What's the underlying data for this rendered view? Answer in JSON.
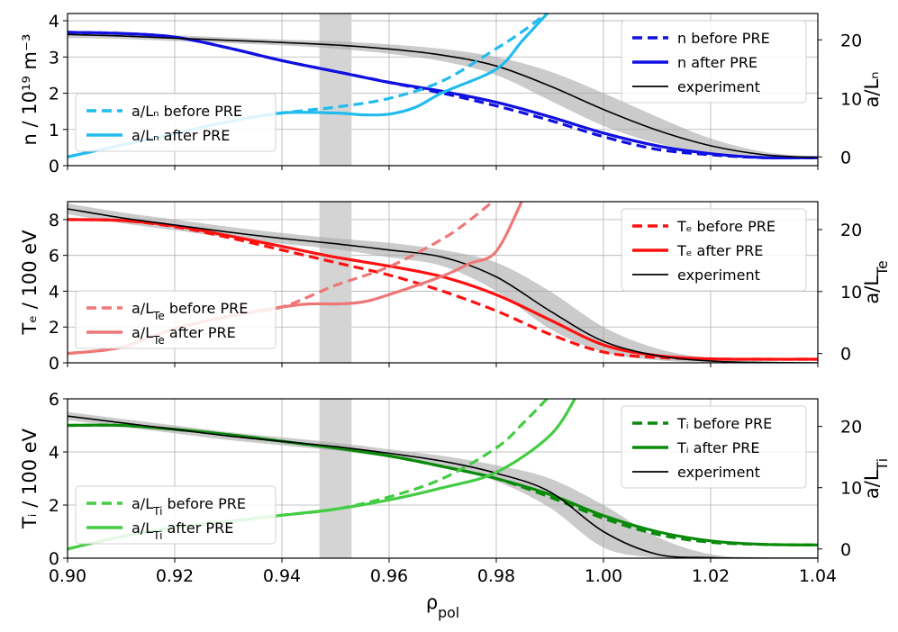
{
  "chart_data": [
    {
      "type": "line",
      "panel": "density",
      "xlabel": "",
      "ylabel_left": "n / 10¹⁹ m⁻³",
      "ylabel_right": "a/Lₙ",
      "xlim": [
        0.9,
        1.04
      ],
      "ylim_left": [
        0,
        4.2
      ],
      "ylim_right": [
        -1.5,
        24.5
      ],
      "yticks_left": [
        0,
        1,
        2,
        3,
        4
      ],
      "yticks_right": [
        0,
        10,
        20
      ],
      "yticklabels_left": [
        "0",
        "1",
        "2",
        "3",
        "4"
      ],
      "yticklabels_right": [
        "0",
        "10",
        "20"
      ],
      "shaded_x_range": [
        0.947,
        0.953
      ],
      "legend_upper": {
        "position": "upper-right",
        "entries": [
          "n before PRE",
          "n after PRE",
          "experiment"
        ]
      },
      "legend_lower": {
        "position": "lower-left",
        "entries": [
          "a/Lₙ before PRE",
          "a/Lₙ after PRE"
        ]
      },
      "series": [
        {
          "name": "n before PRE",
          "axis": "left",
          "style": "dashed",
          "color": "#1010e0",
          "x": [
            0.9,
            0.91,
            0.92,
            0.93,
            0.94,
            0.95,
            0.96,
            0.97,
            0.98,
            0.99,
            1.0,
            1.01,
            1.02,
            1.03,
            1.04
          ],
          "y": [
            3.68,
            3.65,
            3.55,
            3.25,
            2.9,
            2.6,
            2.3,
            2.0,
            1.65,
            1.25,
            0.8,
            0.45,
            0.3,
            0.22,
            0.22
          ]
        },
        {
          "name": "n after PRE",
          "axis": "left",
          "style": "solid",
          "color": "#1010e0",
          "x": [
            0.9,
            0.91,
            0.92,
            0.93,
            0.94,
            0.95,
            0.96,
            0.97,
            0.98,
            0.99,
            1.0,
            1.01,
            1.02,
            1.03,
            1.04
          ],
          "y": [
            3.68,
            3.65,
            3.55,
            3.25,
            2.9,
            2.6,
            2.3,
            2.05,
            1.75,
            1.35,
            0.9,
            0.55,
            0.33,
            0.22,
            0.22
          ]
        },
        {
          "name": "experiment",
          "axis": "left",
          "style": "solid",
          "color": "#000000",
          "x": [
            0.9,
            0.91,
            0.92,
            0.93,
            0.94,
            0.95,
            0.96,
            0.97,
            0.98,
            0.99,
            1.0,
            1.01,
            1.02,
            1.03,
            1.04
          ],
          "y": [
            3.62,
            3.58,
            3.52,
            3.46,
            3.4,
            3.33,
            3.22,
            3.05,
            2.75,
            2.2,
            1.55,
            0.98,
            0.55,
            0.3,
            0.22
          ],
          "band_upper": [
            3.72,
            3.66,
            3.6,
            3.54,
            3.48,
            3.43,
            3.35,
            3.22,
            3.0,
            2.6,
            2.0,
            1.35,
            0.75,
            0.38,
            0.25
          ],
          "band_lower": [
            3.52,
            3.5,
            3.44,
            3.38,
            3.32,
            3.23,
            3.09,
            2.88,
            2.5,
            1.8,
            1.1,
            0.62,
            0.35,
            0.22,
            0.19
          ]
        },
        {
          "name": "a/Lₙ before PRE",
          "axis": "right",
          "style": "dashed",
          "color": "#22bbee",
          "x": [
            0.9,
            0.91,
            0.92,
            0.93,
            0.94,
            0.95,
            0.96,
            0.97,
            0.98,
            0.985,
            0.99
          ],
          "y": [
            0,
            2,
            4,
            6,
            7.5,
            8.5,
            10,
            13,
            18.5,
            21.5,
            25
          ]
        },
        {
          "name": "a/Lₙ after PRE",
          "axis": "right",
          "style": "solid",
          "color": "#22bbee",
          "x": [
            0.9,
            0.91,
            0.92,
            0.93,
            0.94,
            0.95,
            0.955,
            0.96,
            0.965,
            0.97,
            0.98,
            0.985,
            0.99
          ],
          "y": [
            0,
            2,
            4,
            6,
            7.5,
            7.5,
            7.2,
            7.3,
            8.5,
            11,
            15,
            20,
            25
          ]
        }
      ]
    },
    {
      "type": "line",
      "panel": "electron temperature",
      "xlabel": "",
      "ylabel_left": "Tₑ / 100 eV",
      "ylabel_right": "a/L_Te",
      "xlim": [
        0.9,
        1.04
      ],
      "ylim_left": [
        0,
        9
      ],
      "ylim_right": [
        -1.5,
        24.5
      ],
      "yticks_left": [
        0,
        2,
        4,
        6,
        8
      ],
      "yticks_right": [
        0,
        10,
        20
      ],
      "yticklabels_left": [
        "0",
        "2",
        "4",
        "6",
        "8"
      ],
      "yticklabels_right": [
        "0",
        "10",
        "20"
      ],
      "shaded_x_range": [
        0.947,
        0.953
      ],
      "legend_upper": {
        "position": "upper-right",
        "entries": [
          "Tₑ before PRE",
          "Tₑ after PRE",
          "experiment"
        ]
      },
      "legend_lower": {
        "position": "lower-left",
        "entries": [
          "a/L_Te before PRE",
          "a/L_Te after PRE"
        ]
      },
      "series": [
        {
          "name": "Tₑ before PRE",
          "axis": "left",
          "style": "dashed",
          "color": "#ff1010",
          "x": [
            0.9,
            0.91,
            0.92,
            0.93,
            0.94,
            0.95,
            0.96,
            0.97,
            0.98,
            0.99,
            1.0,
            1.01,
            1.02,
            1.03,
            1.04
          ],
          "y": [
            8.0,
            7.95,
            7.6,
            7.0,
            6.3,
            5.6,
            4.9,
            4.0,
            2.9,
            1.6,
            0.6,
            0.3,
            0.22,
            0.2,
            0.2
          ]
        },
        {
          "name": "Tₑ after PRE",
          "axis": "left",
          "style": "solid",
          "color": "#ff1010",
          "x": [
            0.9,
            0.91,
            0.92,
            0.93,
            0.94,
            0.95,
            0.96,
            0.97,
            0.98,
            0.99,
            1.0,
            1.01,
            1.02,
            1.03,
            1.04
          ],
          "y": [
            8.0,
            7.95,
            7.65,
            7.1,
            6.5,
            5.9,
            5.4,
            4.8,
            3.8,
            2.4,
            1.0,
            0.4,
            0.22,
            0.2,
            0.2
          ]
        },
        {
          "name": "experiment",
          "axis": "left",
          "style": "solid",
          "color": "#000000",
          "x": [
            0.9,
            0.91,
            0.92,
            0.93,
            0.94,
            0.95,
            0.96,
            0.97,
            0.98,
            0.99,
            1.0,
            1.01,
            1.02,
            1.03,
            1.04
          ],
          "y": [
            8.6,
            8.1,
            7.7,
            7.3,
            6.95,
            6.65,
            6.3,
            5.9,
            4.8,
            2.9,
            1.2,
            0.4,
            0.1,
            0.02,
            0.0
          ],
          "band_upper": [
            8.9,
            8.4,
            8.0,
            7.6,
            7.25,
            6.95,
            6.7,
            6.3,
            5.6,
            4.0,
            2.0,
            0.8,
            0.25,
            0.06,
            0.02
          ],
          "band_lower": [
            8.3,
            7.8,
            7.4,
            7.0,
            6.65,
            6.35,
            5.9,
            5.4,
            4.0,
            1.9,
            0.6,
            0.15,
            0.02,
            0.0,
            0.0
          ]
        },
        {
          "name": "a/L_Te before PRE",
          "axis": "right",
          "style": "dashed",
          "color": "#ee7777",
          "x": [
            0.9,
            0.91,
            0.92,
            0.93,
            0.94,
            0.95,
            0.96,
            0.97,
            0.975,
            0.98
          ],
          "y": [
            0,
            1,
            4,
            6,
            7.5,
            11,
            14,
            18.5,
            21.5,
            25
          ]
        },
        {
          "name": "a/L_Te after PRE",
          "axis": "right",
          "style": "solid",
          "color": "#ee7777",
          "x": [
            0.9,
            0.91,
            0.92,
            0.93,
            0.94,
            0.945,
            0.95,
            0.955,
            0.96,
            0.97,
            0.975,
            0.98,
            0.985
          ],
          "y": [
            0,
            1,
            4,
            6,
            7.5,
            8.0,
            8.0,
            8.3,
            9.5,
            12.5,
            14.5,
            16.5,
            25
          ]
        }
      ]
    },
    {
      "type": "line",
      "panel": "ion temperature",
      "xlabel": "ρ_pol",
      "ylabel_left": "Tᵢ / 100 eV",
      "ylabel_right": "a/L_Ti",
      "xlim": [
        0.9,
        1.04
      ],
      "ylim_left": [
        0,
        6
      ],
      "ylim_right": [
        -1.5,
        24.5
      ],
      "yticks_left": [
        0,
        2,
        4,
        6
      ],
      "yticks_right": [
        0,
        10,
        20
      ],
      "yticklabels_left": [
        "0",
        "2",
        "4",
        "6"
      ],
      "yticklabels_right": [
        "0",
        "10",
        "20"
      ],
      "xticks": [
        0.9,
        0.92,
        0.94,
        0.96,
        0.98,
        1.0,
        1.02,
        1.04
      ],
      "xticklabels": [
        "0.90",
        "0.92",
        "0.94",
        "0.96",
        "0.98",
        "1.00",
        "1.02",
        "1.04"
      ],
      "shaded_x_range": [
        0.947,
        0.953
      ],
      "legend_upper": {
        "position": "upper-right",
        "entries": [
          "Tᵢ before PRE",
          "Tᵢ after PRE",
          "experiment"
        ]
      },
      "legend_lower": {
        "position": "lower-left",
        "entries": [
          "a/L_Ti before PRE",
          "a/L_Ti after PRE"
        ]
      },
      "series": [
        {
          "name": "Tᵢ before PRE",
          "axis": "left",
          "style": "dashed",
          "color": "#0a8a0a",
          "x": [
            0.9,
            0.91,
            0.92,
            0.93,
            0.94,
            0.95,
            0.96,
            0.97,
            0.98,
            0.99,
            1.0,
            1.01,
            1.02,
            1.03,
            1.04
          ],
          "y": [
            5.0,
            5.0,
            4.85,
            4.65,
            4.4,
            4.15,
            3.85,
            3.45,
            3.0,
            2.3,
            1.5,
            0.9,
            0.6,
            0.52,
            0.5
          ]
        },
        {
          "name": "Tᵢ after PRE",
          "axis": "left",
          "style": "solid",
          "color": "#0a8a0a",
          "x": [
            0.9,
            0.91,
            0.92,
            0.93,
            0.94,
            0.95,
            0.96,
            0.97,
            0.98,
            0.99,
            1.0,
            1.01,
            1.02,
            1.03,
            1.04
          ],
          "y": [
            5.0,
            5.0,
            4.85,
            4.65,
            4.4,
            4.15,
            3.85,
            3.45,
            3.0,
            2.4,
            1.6,
            1.0,
            0.65,
            0.52,
            0.5
          ]
        },
        {
          "name": "experiment",
          "axis": "left",
          "style": "solid",
          "color": "#000000",
          "x": [
            0.9,
            0.91,
            0.92,
            0.93,
            0.94,
            0.95,
            0.96,
            0.97,
            0.98,
            0.99,
            1.0,
            1.01,
            1.02,
            1.03,
            1.04
          ],
          "y": [
            5.35,
            5.1,
            4.85,
            4.6,
            4.4,
            4.2,
            3.95,
            3.65,
            3.2,
            2.5,
            1.0,
            0.15,
            0.02,
            0.0,
            0.0
          ],
          "band_upper": [
            5.5,
            5.25,
            5.0,
            4.75,
            4.55,
            4.35,
            4.1,
            3.85,
            3.5,
            3.0,
            2.0,
            0.8,
            0.15,
            0.03,
            0.0
          ],
          "band_lower": [
            5.2,
            4.95,
            4.7,
            4.45,
            4.25,
            4.05,
            3.8,
            3.45,
            2.9,
            1.9,
            0.4,
            0.02,
            0.0,
            0.0,
            0.0
          ]
        },
        {
          "name": "a/L_Ti before PRE",
          "axis": "right",
          "style": "dashed",
          "color": "#44cc44",
          "x": [
            0.9,
            0.91,
            0.92,
            0.93,
            0.94,
            0.95,
            0.96,
            0.97,
            0.98,
            0.985,
            0.99
          ],
          "y": [
            0,
            2,
            3.5,
            4.5,
            5.5,
            6.5,
            8.5,
            11.5,
            16.5,
            20.5,
            25
          ]
        },
        {
          "name": "a/L_Ti after PRE",
          "axis": "right",
          "style": "solid",
          "color": "#44cc44",
          "x": [
            0.9,
            0.91,
            0.92,
            0.93,
            0.94,
            0.95,
            0.96,
            0.97,
            0.98,
            0.99,
            0.995
          ],
          "y": [
            0,
            2,
            3.5,
            4.5,
            5.5,
            6.5,
            8.0,
            10,
            12.5,
            18.5,
            25
          ]
        }
      ]
    }
  ]
}
